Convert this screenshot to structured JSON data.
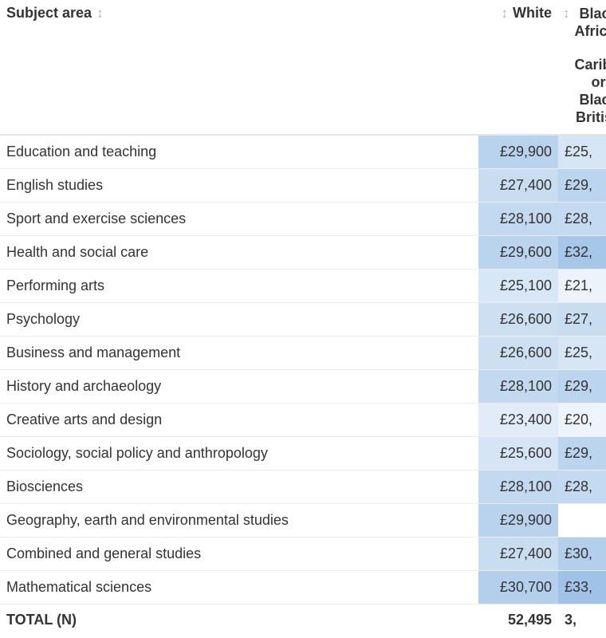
{
  "header": {
    "subject": "Subject area",
    "white": "White",
    "black_lines": [
      "Black",
      "African",
      "",
      "Caribbean",
      "or",
      "Black",
      "British"
    ]
  },
  "rows": [
    {
      "subject": "Education and teaching",
      "white": "£29,900",
      "black": "£25,",
      "white_color": "#b9d3ed",
      "black_color": "#d6e6f5"
    },
    {
      "subject": "English studies",
      "white": "£27,400",
      "black": "£29,",
      "white_color": "#c9ddf1",
      "black_color": "#bcd5ee"
    },
    {
      "subject": "Sport and exercise sciences",
      "white": "£28,100",
      "black": "£28,",
      "white_color": "#c3d9ef",
      "black_color": "#c4daf0"
    },
    {
      "subject": "Health and social care",
      "white": "£29,600",
      "black": "£32,",
      "white_color": "#bad4ed",
      "black_color": "#a6c7e8"
    },
    {
      "subject": "Performing arts",
      "white": "£25,100",
      "black": "£21,",
      "white_color": "#d8e7f5",
      "black_color": "#ecf3fb"
    },
    {
      "subject": "Psychology",
      "white": "£26,600",
      "black": "£27,",
      "white_color": "#cde0f2",
      "black_color": "#c9ddf1"
    },
    {
      "subject": "Business and management",
      "white": "£26,600",
      "black": "£25,",
      "white_color": "#cde0f2",
      "black_color": "#d6e6f5"
    },
    {
      "subject": "History and archaeology",
      "white": "£28,100",
      "black": "£29,",
      "white_color": "#c3d9ef",
      "black_color": "#bcd5ee"
    },
    {
      "subject": "Creative arts and design",
      "white": "£23,400",
      "black": "£20,",
      "white_color": "#e1ecf8",
      "black_color": "#eef4fb"
    },
    {
      "subject": "Sociology, social policy and anthropology",
      "white": "£25,600",
      "black": "£29,",
      "white_color": "#d5e5f5",
      "black_color": "#bcd5ee"
    },
    {
      "subject": "Biosciences",
      "white": "£28,100",
      "black": "£28,",
      "white_color": "#c3d9ef",
      "black_color": "#c4daf0"
    },
    {
      "subject": "Geography, earth and environmental studies",
      "white": "£29,900",
      "black": "",
      "white_color": "#b9d3ed",
      "black_color": "#ffffff"
    },
    {
      "subject": "Combined and general studies",
      "white": "£27,400",
      "black": "£30,",
      "white_color": "#c9ddf1",
      "black_color": "#b3cfeb"
    },
    {
      "subject": "Mathematical sciences",
      "white": "£30,700",
      "black": "£33,",
      "white_color": "#b3cfeb",
      "black_color": "#9fc2e6"
    }
  ],
  "total": {
    "label": "TOTAL (N)",
    "white": "52,495",
    "black": "3,"
  },
  "icons": {
    "sort": "sort-arrows-icon"
  }
}
